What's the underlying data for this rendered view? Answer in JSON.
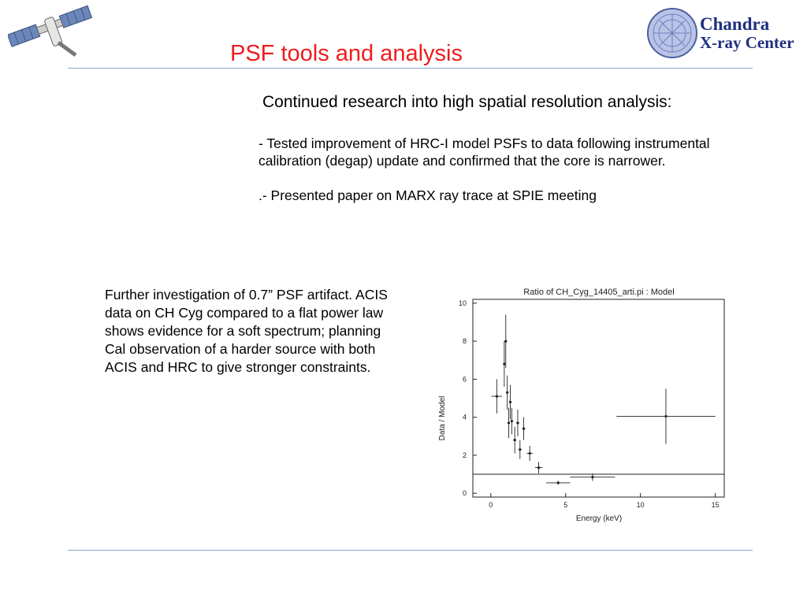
{
  "title": "PSF tools and analysis",
  "logo": {
    "line1": "Chandra",
    "line2": "X-ray Center"
  },
  "subtitle": "Continued research into high spatial resolution analysis:",
  "bullets": [
    {
      "line1": "-  Tested improvement of HRC-I model PSFs to data following instrumental",
      "line2": "calibration (degap) update and confirmed that the core is narrower."
    },
    {
      "line1": ".-  Presented paper on MARX ray trace at SPIE meeting"
    }
  ],
  "paragraph": "Further investigation of 0.7” PSF artifact.  ACIS data on CH Cyg compared to a flat power law shows evidence for a soft spectrum; planning Cal observation of a harder source with both ACIS and HRC to give stronger constraints.",
  "chart_data": {
    "type": "scatter",
    "title": "Ratio of CH_Cyg_14405_arti.pi : Model",
    "xlabel": "Energy (keV)",
    "ylabel": "Data / Model",
    "xlim": [
      -1.2,
      15.6
    ],
    "ylim": [
      -0.2,
      10.2
    ],
    "xticks": [
      0,
      5,
      10,
      15
    ],
    "yticks": [
      0,
      2,
      4,
      6,
      8,
      10
    ],
    "reference_line_y": 1,
    "points": [
      {
        "x": 0.4,
        "y": 5.1,
        "xerr": 0.35,
        "yerr": 0.9
      },
      {
        "x": 0.9,
        "y": 6.8,
        "xerr": 0.05,
        "yerr": 1.2
      },
      {
        "x": 1.0,
        "y": 8.0,
        "xerr": 0.05,
        "yerr": 1.4
      },
      {
        "x": 1.1,
        "y": 5.3,
        "xerr": 0.05,
        "yerr": 0.9
      },
      {
        "x": 1.2,
        "y": 3.7,
        "xerr": 0.05,
        "yerr": 0.8
      },
      {
        "x": 1.3,
        "y": 4.8,
        "xerr": 0.05,
        "yerr": 0.9
      },
      {
        "x": 1.4,
        "y": 3.8,
        "xerr": 0.05,
        "yerr": 0.7
      },
      {
        "x": 1.6,
        "y": 2.8,
        "xerr": 0.1,
        "yerr": 0.7
      },
      {
        "x": 1.8,
        "y": 3.7,
        "xerr": 0.1,
        "yerr": 0.7
      },
      {
        "x": 1.95,
        "y": 2.3,
        "xerr": 0.1,
        "yerr": 0.5
      },
      {
        "x": 2.2,
        "y": 3.4,
        "xerr": 0.1,
        "yerr": 0.6
      },
      {
        "x": 2.6,
        "y": 2.1,
        "xerr": 0.2,
        "yerr": 0.4
      },
      {
        "x": 3.2,
        "y": 1.35,
        "xerr": 0.25,
        "yerr": 0.3
      },
      {
        "x": 4.5,
        "y": 0.55,
        "xerr": 0.8,
        "yerr": 0.1
      },
      {
        "x": 6.8,
        "y": 0.85,
        "xerr": 1.5,
        "yerr": 0.2
      },
      {
        "x": 11.7,
        "y": 4.05,
        "xerr": 3.3,
        "yerr": 1.45
      }
    ]
  }
}
